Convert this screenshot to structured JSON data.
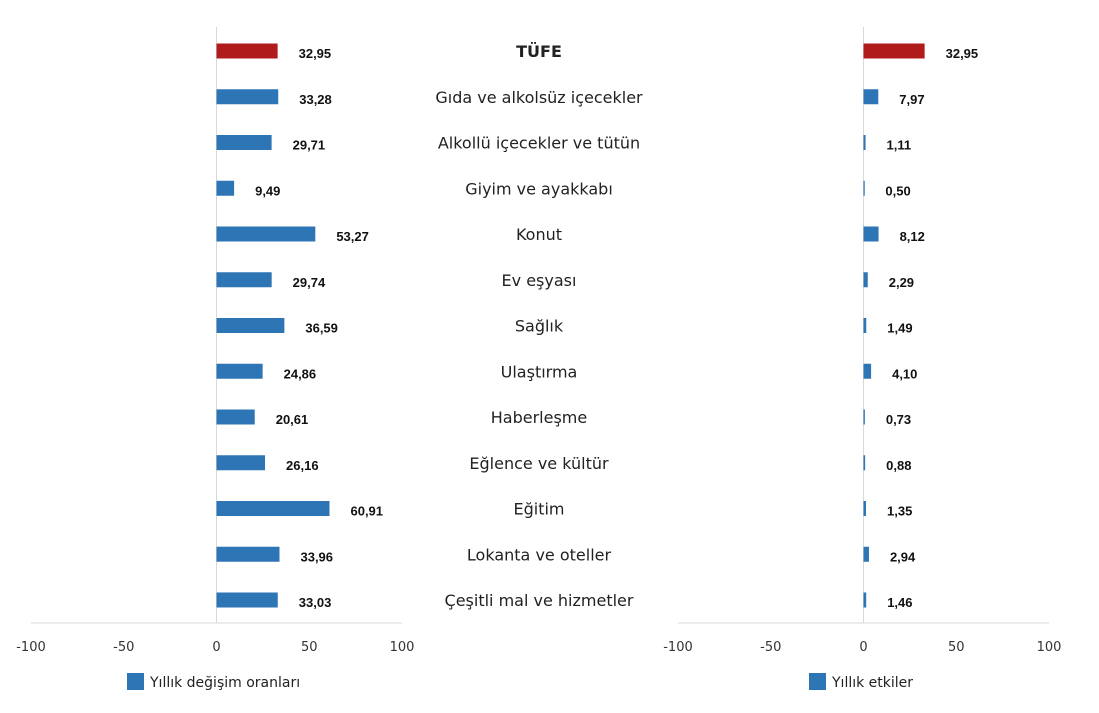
{
  "chart_data": {
    "type": "bar",
    "orientation": "horizontal",
    "categories": [
      "TÜFE",
      "Gıda ve alkolsüz içecekler",
      "Alkollü içecekler ve tütün",
      "Giyim ve ayakkabı",
      "Konut",
      "Ev eşyası",
      "Sağlık",
      "Ulaştırma",
      "Haberleşme",
      "Eğlence ve kültür",
      "Eğitim",
      "Lokanta ve oteller",
      "Çeşitli mal ve hizmetler"
    ],
    "highlight_category": "TÜFE",
    "colors": {
      "series": "#2e75b6",
      "highlight": "#b01c1c",
      "axis": "#d9d9d9"
    },
    "panels": [
      {
        "legend": "Yıllık değişim oranları",
        "values": [
          32.95,
          33.28,
          29.71,
          9.49,
          53.27,
          29.74,
          36.59,
          24.86,
          20.61,
          26.16,
          60.91,
          33.96,
          33.03
        ],
        "value_labels": [
          "32,95",
          "33,28",
          "29,71",
          "9,49",
          "53,27",
          "29,74",
          "36,59",
          "24,86",
          "20,61",
          "26,16",
          "60,91",
          "33,96",
          "33,03"
        ],
        "xlim": [
          -100,
          100
        ],
        "ticks": [
          "-100",
          "-50",
          "0",
          "50",
          "100"
        ]
      },
      {
        "legend": "Yıllık etkiler",
        "values": [
          32.95,
          7.97,
          1.11,
          0.5,
          8.12,
          2.29,
          1.49,
          4.1,
          0.73,
          0.88,
          1.35,
          2.94,
          1.46
        ],
        "value_labels": [
          "32,95",
          "7,97",
          "1,11",
          "0,50",
          "8,12",
          "2,29",
          "1,49",
          "4,10",
          "0,73",
          "0,88",
          "1,35",
          "2,94",
          "1,46"
        ],
        "xlim": [
          -100,
          100
        ],
        "ticks": [
          "-100",
          "-50",
          "0",
          "50",
          "100"
        ]
      }
    ],
    "legend_position": "bottom"
  }
}
